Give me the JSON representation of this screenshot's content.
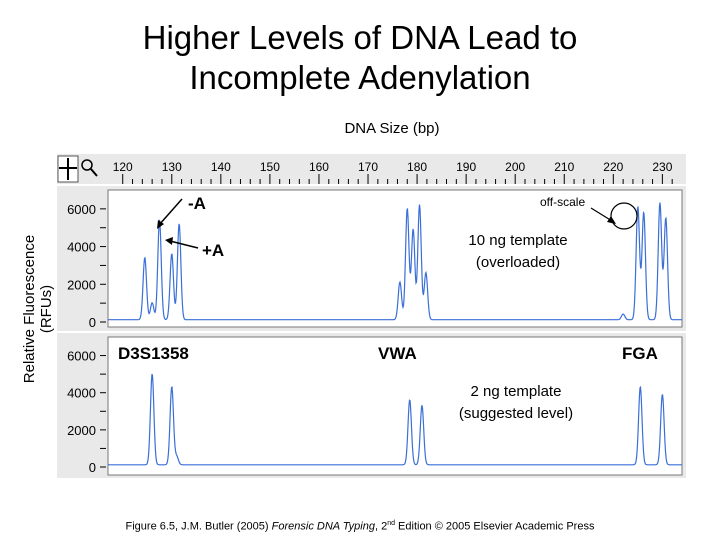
{
  "title_line1": "Higher Levels of DNA Lead to",
  "title_line2": "Incomplete Adenylation",
  "chart_data": {
    "type": "line",
    "xlabel": "DNA Size (bp)",
    "ylabel": "Relative Fluorescence (RFUs)",
    "x_ticks": [
      120,
      130,
      140,
      150,
      160,
      170,
      180,
      190,
      200,
      210,
      220,
      230
    ],
    "xlim": [
      117,
      234
    ],
    "panels": [
      {
        "name": "10 ng template (overloaded)",
        "ylim": [
          0,
          7000
        ],
        "y_ticks": [
          0,
          2000,
          4000,
          6000
        ],
        "peaks": [
          {
            "x": 124.5,
            "y": 3300
          },
          {
            "x": 126.0,
            "y": 900
          },
          {
            "x": 127.5,
            "y": 5300
          },
          {
            "x": 130.0,
            "y": 3500
          },
          {
            "x": 131.5,
            "y": 5100
          },
          {
            "x": 176.5,
            "y": 2000
          },
          {
            "x": 178.0,
            "y": 5900
          },
          {
            "x": 179.2,
            "y": 4800
          },
          {
            "x": 180.5,
            "y": 6100
          },
          {
            "x": 181.8,
            "y": 2500
          },
          {
            "x": 222.0,
            "y": 300
          },
          {
            "x": 225.0,
            "y": 6000
          },
          {
            "x": 226.2,
            "y": 5700
          },
          {
            "x": 229.5,
            "y": 6200
          },
          {
            "x": 230.7,
            "y": 5400
          }
        ],
        "annotations": [
          "-A",
          "+A",
          "off-scale",
          "10 ng template",
          "(overloaded)"
        ]
      },
      {
        "name": "2 ng template (suggested level)",
        "ylim": [
          0,
          7000
        ],
        "y_ticks": [
          0,
          2000,
          4000,
          6000
        ],
        "peaks": [
          {
            "x": 126.0,
            "y": 4900
          },
          {
            "x": 130.0,
            "y": 4200
          },
          {
            "x": 131.0,
            "y": 450
          },
          {
            "x": 178.5,
            "y": 3500
          },
          {
            "x": 181.0,
            "y": 3200
          },
          {
            "x": 225.5,
            "y": 4200
          },
          {
            "x": 230.0,
            "y": 3800
          }
        ],
        "annotations": [
          "2 ng template",
          "(suggested level)"
        ]
      }
    ],
    "markers": [
      "D3S1358",
      "VWA",
      "FGA"
    ]
  },
  "labels": {
    "minus_a": "-A",
    "plus_a": "+A",
    "off_scale": "off-scale",
    "p1_line1": "10 ng template",
    "p1_line2": "(overloaded)",
    "p2_line1": "2 ng template",
    "p2_line2": "(suggested level)",
    "marker1": "D3S1358",
    "marker2": "VWA",
    "marker3": "FGA"
  },
  "caption": {
    "prefix": "Figure 6.5, J.M. Butler (2005) ",
    "book": "Forensic DNA Typing",
    "mid": ", 2",
    "sup": "nd",
    "suffix": " Edition © 2005 Elsevier Academic Press"
  },
  "colors": {
    "trace": "#3a6fd8",
    "panel_bg": "#e9e9e9",
    "plot_bg": "#ffffff"
  },
  "icons": [
    "crosshair-icon",
    "magnifier-icon"
  ]
}
